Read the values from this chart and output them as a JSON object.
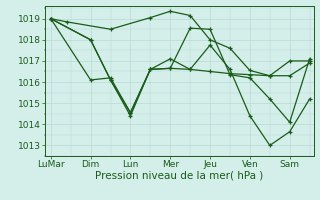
{
  "title": "",
  "xlabel": "Pression niveau de la mer( hPa )",
  "background_color": "#d4eeea",
  "line_color": "#1a5c1a",
  "grid_color": "#b8d8d4",
  "ylim": [
    1012.5,
    1019.6
  ],
  "yticks": [
    1013,
    1014,
    1015,
    1016,
    1017,
    1018,
    1019
  ],
  "x_labels": [
    "LuMar",
    "Dim",
    "Lun",
    "Mer",
    "Jeu",
    "Ven",
    "Sam"
  ],
  "x_positions": [
    0,
    1,
    2,
    3,
    4,
    5,
    6
  ],
  "xlim": [
    -0.15,
    6.6
  ],
  "series": [
    {
      "x": [
        0,
        0.4,
        1.5,
        2.5,
        3.0,
        3.5,
        4.0,
        4.5,
        5.0,
        5.5,
        6.0,
        6.5
      ],
      "y": [
        1019.0,
        1018.85,
        1018.5,
        1019.05,
        1019.35,
        1019.15,
        1018.0,
        1017.6,
        1016.55,
        1016.3,
        1017.0,
        1017.0
      ]
    },
    {
      "x": [
        0,
        1.0,
        1.5,
        2.0,
        2.5,
        3.0,
        3.5,
        4.0,
        4.5,
        5.0,
        5.5,
        6.0,
        6.5
      ],
      "y": [
        1019.0,
        1018.0,
        1016.1,
        1014.4,
        1016.6,
        1016.65,
        1018.55,
        1018.5,
        1016.35,
        1016.2,
        1015.2,
        1014.1,
        1017.1
      ]
    },
    {
      "x": [
        0,
        1.0,
        1.5,
        2.0,
        2.5,
        3.0,
        3.5,
        4.0,
        4.5,
        5.0,
        5.5,
        6.0,
        6.5
      ],
      "y": [
        1019.0,
        1016.1,
        1016.2,
        1014.55,
        1016.6,
        1016.65,
        1016.6,
        1016.5,
        1016.4,
        1016.35,
        1016.3,
        1016.3,
        1016.9
      ]
    },
    {
      "x": [
        0,
        1.0,
        1.5,
        2.0,
        2.5,
        3.0,
        3.5,
        4.0,
        4.5,
        5.0,
        5.5,
        6.0,
        6.5
      ],
      "y": [
        1019.0,
        1018.0,
        1016.1,
        1014.55,
        1016.6,
        1017.1,
        1016.6,
        1017.75,
        1016.6,
        1014.4,
        1013.0,
        1013.65,
        1015.2
      ]
    }
  ],
  "marker": "+",
  "markersize": 3.5,
  "linewidth": 0.9,
  "markeredgewidth": 0.9,
  "fontsize_xlabel": 7.5,
  "fontsize_tick": 6.5
}
